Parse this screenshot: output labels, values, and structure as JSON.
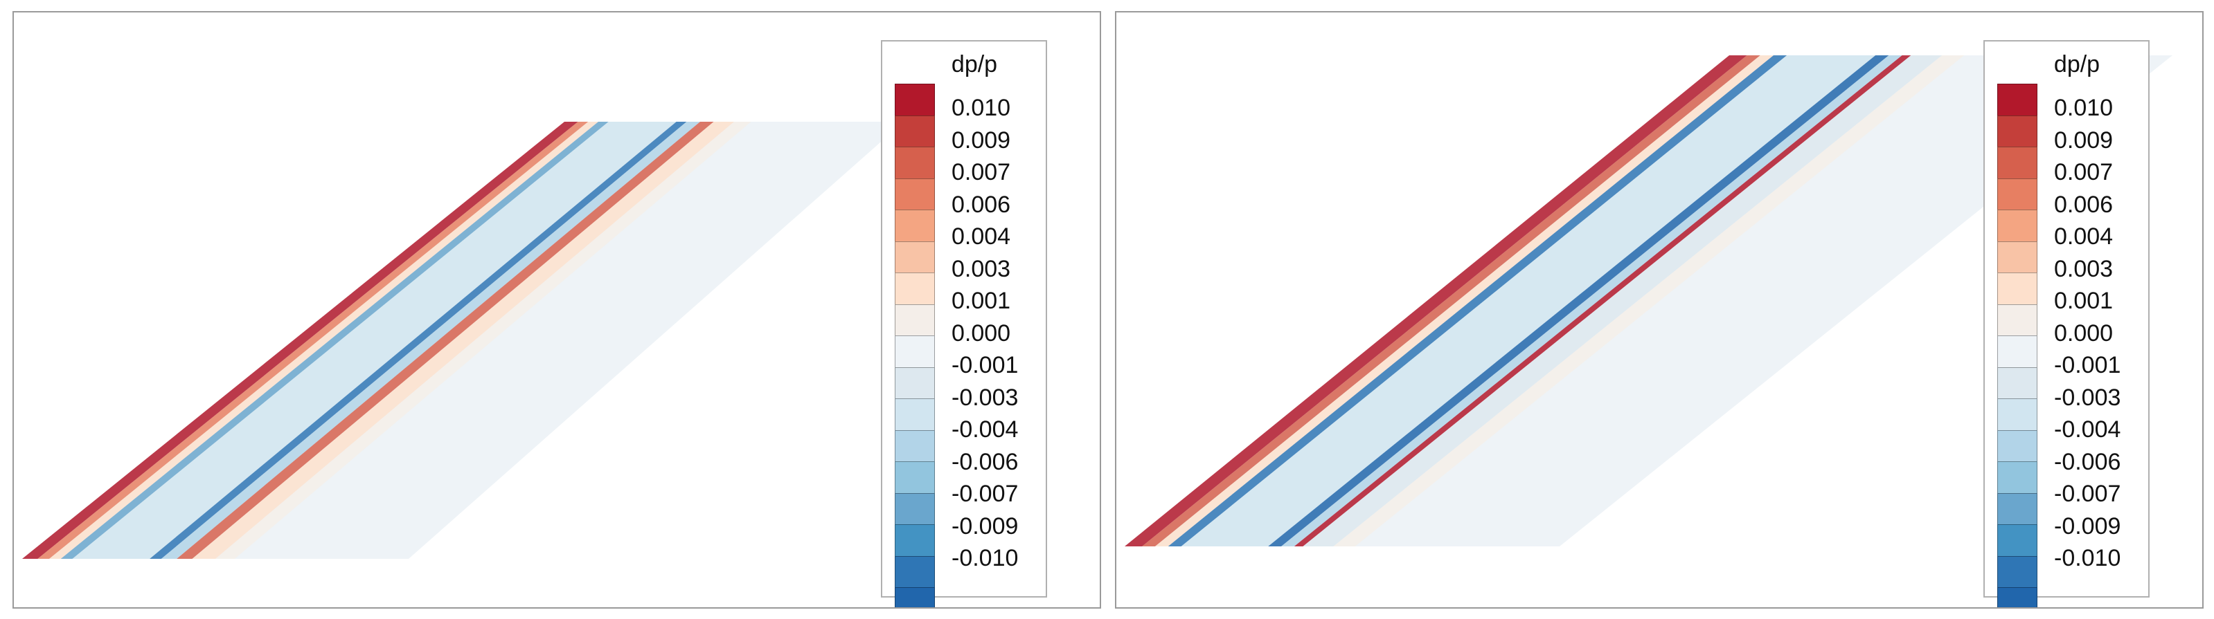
{
  "colors": {
    "levels": [
      "#b2182b",
      "#c43f3a",
      "#d6604d",
      "#e77f62",
      "#f4a582",
      "#f8c3a6",
      "#fde0cc",
      "#f4eee9",
      "#eef3f7",
      "#dde8ef",
      "#d1e5f0",
      "#b2d4e8",
      "#92c5de",
      "#6aa6cd",
      "#4393c3",
      "#2f76b5",
      "#2166ac"
    ]
  },
  "chart_data": [
    {
      "type": "heatmap",
      "title": "",
      "colorbar": {
        "title": "dp/p",
        "ticks": [
          "0.010",
          "0.009",
          "0.007",
          "0.006",
          "0.004",
          "0.003",
          "0.001",
          "0.000",
          "-0.001",
          "-0.003",
          "-0.004",
          "-0.006",
          "-0.007",
          "-0.009",
          "-0.010"
        ],
        "range": [
          -0.01,
          0.01
        ],
        "placement": "right"
      },
      "bands": [
        {
          "offset": 0.0,
          "value": 0.01
        },
        {
          "offset": 0.04,
          "value": 0.006
        },
        {
          "offset": 0.07,
          "value": 0.002
        },
        {
          "offset": 0.1,
          "value": -0.006
        },
        {
          "offset": 0.13,
          "value": -0.002
        },
        {
          "offset": 0.33,
          "value": -0.009
        },
        {
          "offset": 0.36,
          "value": -0.004
        },
        {
          "offset": 0.4,
          "value": 0.007
        },
        {
          "offset": 0.44,
          "value": 0.003
        },
        {
          "offset": 0.5,
          "value": 0.001
        }
      ]
    },
    {
      "type": "heatmap",
      "title": "",
      "colorbar": {
        "title": "dp/p",
        "ticks": [
          "0.010",
          "0.009",
          "0.007",
          "0.006",
          "0.004",
          "0.003",
          "0.001",
          "0.000",
          "-0.001",
          "-0.003",
          "-0.004",
          "-0.006",
          "-0.007",
          "-0.009",
          "-0.010"
        ],
        "range": [
          -0.01,
          0.01
        ],
        "placement": "right"
      },
      "bands": [
        {
          "offset": 0.0,
          "value": 0.01
        },
        {
          "offset": 0.04,
          "value": 0.007
        },
        {
          "offset": 0.07,
          "value": 0.003
        },
        {
          "offset": 0.1,
          "value": -0.009
        },
        {
          "offset": 0.13,
          "value": -0.003
        },
        {
          "offset": 0.33,
          "value": -0.01
        },
        {
          "offset": 0.36,
          "value": -0.004
        },
        {
          "offset": 0.39,
          "value": 0.01
        },
        {
          "offset": 0.41,
          "value": -0.001
        },
        {
          "offset": 0.48,
          "value": 0.001
        }
      ]
    }
  ]
}
